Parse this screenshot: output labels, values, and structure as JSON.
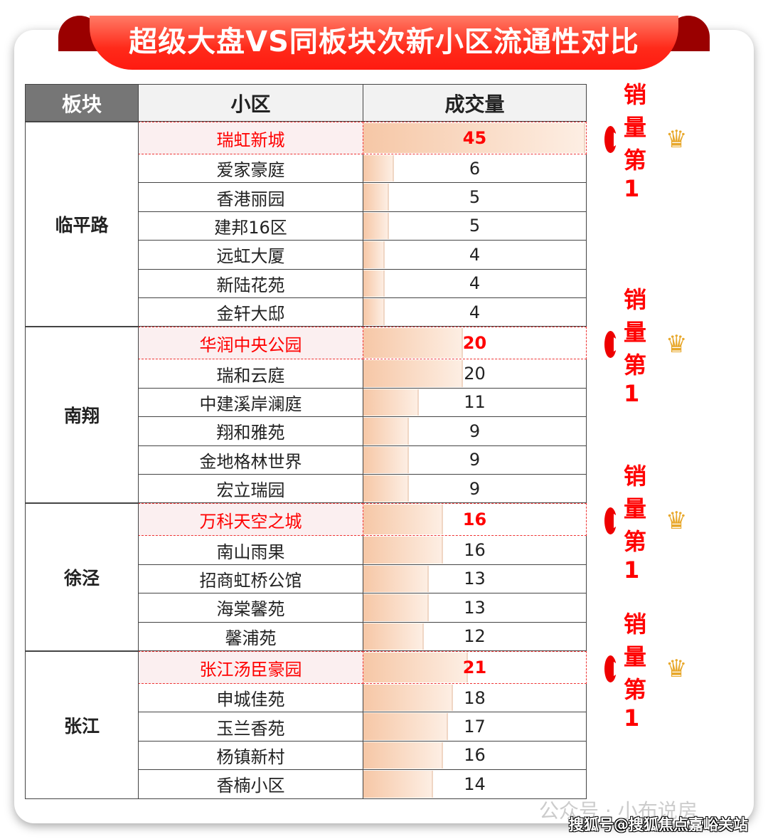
{
  "title": "超级大盘VS同板块次新小区流通性对比",
  "badge_label": "销量第1",
  "watermark_1": "公众号 · 小布说房",
  "watermark_2": "搜狐号@搜狐焦点嘉峪关站",
  "colors": {
    "highlight": "#ff0000",
    "bar": "#f6c7a6",
    "header_dark": "#767676"
  },
  "chart_data": {
    "type": "table",
    "headers": [
      "板块",
      "小区",
      "成交量"
    ],
    "max_value": 45,
    "groups": [
      {
        "name": "临平路",
        "rows": [
          [
            "瑞虹新城",
            45
          ],
          [
            "爱家豪庭",
            6
          ],
          [
            "香港丽园",
            5
          ],
          [
            "建邦16区",
            5
          ],
          [
            "远虹大厦",
            4
          ],
          [
            "新陆花苑",
            4
          ],
          [
            "金轩大邸",
            4
          ]
        ]
      },
      {
        "name": "南翔",
        "rows": [
          [
            "华润中央公园",
            20
          ],
          [
            "瑞和云庭",
            20
          ],
          [
            "中建溪岸澜庭",
            11
          ],
          [
            "翔和雅苑",
            9
          ],
          [
            "金地格林世界",
            9
          ],
          [
            "宏立瑞园",
            9
          ]
        ]
      },
      {
        "name": "徐泾",
        "rows": [
          [
            "万科天空之城",
            16
          ],
          [
            "南山雨果",
            16
          ],
          [
            "招商虹桥公馆",
            13
          ],
          [
            "海棠馨苑",
            13
          ],
          [
            "馨浦苑",
            12
          ]
        ]
      },
      {
        "name": "张江",
        "rows": [
          [
            "张江汤臣豪园",
            21
          ],
          [
            "申城佳苑",
            18
          ],
          [
            "玉兰香苑",
            17
          ],
          [
            "杨镇新村",
            16
          ],
          [
            "香楠小区",
            14
          ]
        ]
      }
    ]
  }
}
